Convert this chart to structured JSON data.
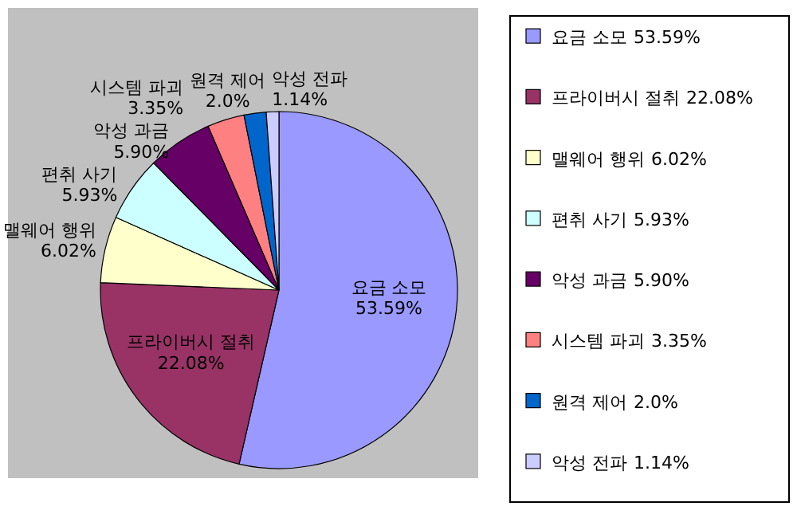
{
  "chart_data": {
    "type": "pie",
    "categories": [
      "요금 소모",
      "프라이버시 절취",
      "맬웨어 행위",
      "편취 사기",
      "악성 과금",
      "시스템 파괴",
      "원격 제어",
      "악성 전파"
    ],
    "values": [
      53.59,
      22.08,
      6.02,
      5.93,
      5.9,
      3.35,
      2.0,
      1.14
    ],
    "value_labels": [
      "53.59%",
      "22.08%",
      "6.02%",
      "5.93%",
      "5.90%",
      "3.35%",
      "2.0%",
      "1.14%"
    ],
    "colors": [
      "#9999ff",
      "#993366",
      "#ffffcc",
      "#ccffff",
      "#660066",
      "#ff8080",
      "#0066cc",
      "#ccccff"
    ],
    "legend": "right"
  }
}
